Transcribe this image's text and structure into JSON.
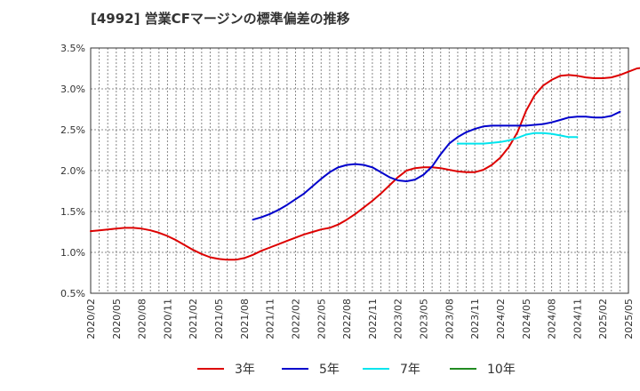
{
  "chart_data": {
    "type": "line",
    "title": "[4992]  営業CFマージンの標準偏差の推移",
    "xlabel": "",
    "ylabel": "",
    "ylim": [
      0.5,
      3.5
    ],
    "y_ticks": [
      "0.5%",
      "1.0%",
      "1.5%",
      "2.0%",
      "2.5%",
      "3.0%",
      "3.5%"
    ],
    "x_ticks": [
      "2020/02",
      "2020/05",
      "2020/08",
      "2020/11",
      "2021/02",
      "2021/05",
      "2021/08",
      "2021/11",
      "2022/02",
      "2022/05",
      "2022/08",
      "2022/11",
      "2023/02",
      "2023/05",
      "2023/08",
      "2023/11",
      "2024/02",
      "2024/05",
      "2024/08",
      "2024/11",
      "2025/02",
      "2025/05"
    ],
    "grid": true,
    "legend_position": "bottom",
    "series": [
      {
        "name": "3年",
        "color": "#dd0000",
        "start": "2020/02",
        "values": [
          1.26,
          1.27,
          1.28,
          1.29,
          1.3,
          1.3,
          1.29,
          1.27,
          1.24,
          1.2,
          1.15,
          1.09,
          1.03,
          0.98,
          0.94,
          0.92,
          0.91,
          0.91,
          0.93,
          0.97,
          1.02,
          1.06,
          1.1,
          1.14,
          1.18,
          1.22,
          1.25,
          1.28,
          1.3,
          1.34,
          1.4,
          1.47,
          1.55,
          1.63,
          1.72,
          1.82,
          1.92,
          2.0,
          2.03,
          2.04,
          2.04,
          2.03,
          2.01,
          1.99,
          1.98,
          1.98,
          2.01,
          2.07,
          2.16,
          2.29,
          2.47,
          2.73,
          2.92,
          3.04,
          3.11,
          3.16,
          3.17,
          3.16,
          3.14,
          3.13,
          3.13,
          3.14,
          3.17,
          3.21,
          3.25,
          3.26,
          3.26,
          3.26,
          3.26,
          3.28,
          3.35
        ]
      },
      {
        "name": "5年",
        "color": "#0000cc",
        "start": "2021/09",
        "values": [
          1.4,
          1.43,
          1.47,
          1.52,
          1.58,
          1.65,
          1.72,
          1.81,
          1.9,
          1.98,
          2.04,
          2.07,
          2.08,
          2.07,
          2.04,
          1.98,
          1.92,
          1.88,
          1.87,
          1.89,
          1.95,
          2.05,
          2.2,
          2.33,
          2.41,
          2.47,
          2.51,
          2.54,
          2.55,
          2.55,
          2.55,
          2.55,
          2.55,
          2.56,
          2.57,
          2.59,
          2.62,
          2.65,
          2.66,
          2.66,
          2.65,
          2.65,
          2.67,
          2.72
        ]
      },
      {
        "name": "7年",
        "color": "#00e5ee",
        "start": "2023/09",
        "values": [
          2.33,
          2.33,
          2.33,
          2.33,
          2.34,
          2.35,
          2.37,
          2.4,
          2.44,
          2.46,
          2.46,
          2.45,
          2.43,
          2.41,
          2.41
        ]
      },
      {
        "name": "10年",
        "color": "#228b22",
        "start": "2025/01",
        "values": []
      }
    ]
  }
}
